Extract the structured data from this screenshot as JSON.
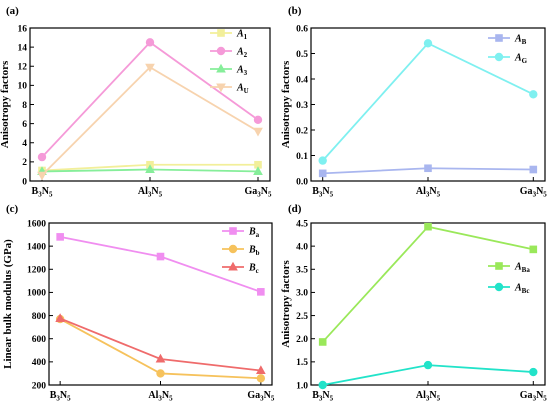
{
  "chart_data": [
    {
      "panel": "(a)",
      "type": "line",
      "categories": [
        "B3N5",
        "Al3N5",
        "Ga3N5"
      ],
      "ylabel": "Anisotropy factors",
      "ylim": [
        0,
        16
      ],
      "yticks": [
        0,
        2,
        4,
        6,
        8,
        10,
        12,
        14,
        16
      ],
      "legend_position": "top-right",
      "series": [
        {
          "name": "A1",
          "label_main": "A",
          "label_sub": "1",
          "marker": "square",
          "color": "#f2ef9a",
          "values": [
            1.1,
            1.7,
            1.7
          ]
        },
        {
          "name": "A2",
          "label_main": "A",
          "label_sub": "2",
          "marker": "circle",
          "color": "#f59ad8",
          "values": [
            2.5,
            14.5,
            6.4
          ]
        },
        {
          "name": "A3",
          "label_main": "A",
          "label_sub": "3",
          "marker": "triangle",
          "color": "#86ee9a",
          "values": [
            1.0,
            1.2,
            1.0
          ]
        },
        {
          "name": "AU",
          "label_main": "A",
          "label_sub": "U",
          "marker": "triangle-down",
          "color": "#f7d3ae",
          "values": [
            0.6,
            11.9,
            5.2
          ]
        }
      ]
    },
    {
      "panel": "(b)",
      "type": "line",
      "categories": [
        "B3N5",
        "Al3N5",
        "Ga3N5"
      ],
      "ylabel": "Anisotropy factors",
      "ylim": [
        0.0,
        0.6
      ],
      "yticks": [
        0.0,
        0.1,
        0.2,
        0.3,
        0.4,
        0.5,
        0.6
      ],
      "legend_position": "top-right",
      "series": [
        {
          "name": "AB",
          "label_main": "A",
          "label_sub": "B",
          "marker": "square",
          "color": "#a9b6ef",
          "values": [
            0.03,
            0.05,
            0.045
          ]
        },
        {
          "name": "AG",
          "label_main": "A",
          "label_sub": "G",
          "marker": "circle",
          "color": "#7ff0f0",
          "values": [
            0.08,
            0.54,
            0.34
          ]
        }
      ]
    },
    {
      "panel": "(c)",
      "type": "line",
      "categories": [
        "B3N5",
        "Al3N5",
        "Ga3N5"
      ],
      "ylabel": "Linear bulk modulus (GPa)",
      "ylim": [
        200,
        1600
      ],
      "yticks": [
        200,
        400,
        600,
        800,
        1000,
        1200,
        1400,
        1600
      ],
      "legend_position": "top-right",
      "series": [
        {
          "name": "Ba",
          "label_main": "B",
          "label_sub": "a",
          "marker": "square",
          "color": "#f08ef0",
          "values": [
            1480,
            1310,
            1005
          ]
        },
        {
          "name": "Bb",
          "label_main": "B",
          "label_sub": "b",
          "marker": "circle",
          "color": "#f6c25c",
          "values": [
            770,
            300,
            258
          ]
        },
        {
          "name": "Bc",
          "label_main": "B",
          "label_sub": "c",
          "marker": "triangle",
          "color": "#ef6b6b",
          "values": [
            775,
            425,
            325
          ]
        }
      ]
    },
    {
      "panel": "(d)",
      "type": "line",
      "categories": [
        "B3N5",
        "Al3N5",
        "Ga3N5"
      ],
      "ylabel": "Anisotropy factors",
      "ylim": [
        1.0,
        4.5
      ],
      "yticks": [
        1.0,
        1.5,
        2.0,
        2.5,
        3.0,
        3.5,
        4.0,
        4.5
      ],
      "legend_position": "right",
      "series": [
        {
          "name": "ABa",
          "label_main": "A",
          "label_sub": "Ba",
          "marker": "square",
          "color": "#9ae85a",
          "values": [
            1.93,
            4.42,
            3.93
          ]
        },
        {
          "name": "ABc",
          "label_main": "A",
          "label_sub": "Bc",
          "marker": "circle",
          "color": "#22e3c9",
          "values": [
            1.0,
            1.43,
            1.28
          ]
        }
      ]
    }
  ],
  "category_labels": [
    {
      "parts": [
        [
          "B",
          ""
        ],
        [
          "3",
          "sub"
        ],
        [
          "N",
          ""
        ],
        [
          "5",
          "sub"
        ]
      ]
    },
    {
      "parts": [
        [
          "Al",
          ""
        ],
        [
          "3",
          "sub"
        ],
        [
          "N",
          ""
        ],
        [
          "5",
          "sub"
        ]
      ]
    },
    {
      "parts": [
        [
          "Ga",
          ""
        ],
        [
          "3",
          "sub"
        ],
        [
          "N",
          ""
        ],
        [
          "5",
          "sub"
        ]
      ]
    }
  ]
}
